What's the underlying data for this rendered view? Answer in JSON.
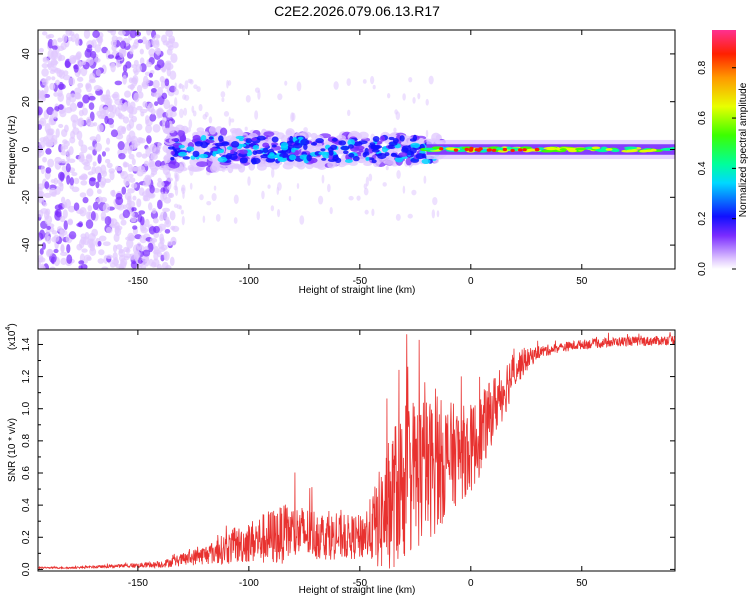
{
  "title": "C2E2.2026.079.06.13.R17",
  "chart_data": [
    {
      "type": "heatmap",
      "xlabel": "Height of straight line (km)",
      "ylabel": "Frequency (Hz)",
      "xlim": [
        -195,
        92
      ],
      "ylim": [
        -50,
        50
      ],
      "xticks": [
        "-150",
        "-100",
        "-50",
        "0",
        "50"
      ],
      "yticks": [
        "-40",
        "-20",
        "0",
        "20",
        "40"
      ],
      "colorbar": {
        "label": "Normalized spectral amplitude",
        "range": [
          0,
          0.95
        ],
        "ticks": [
          "0.0",
          "0.2",
          "0.4",
          "0.6",
          "0.8"
        ]
      },
      "regions": [
        {
          "x_range": [
            -195,
            -135
          ],
          "freq_range": [
            -50,
            50
          ],
          "amplitude": "low-noise"
        },
        {
          "x_range": [
            -135,
            -20
          ],
          "freq_range": [
            -10,
            10
          ],
          "amplitude": "medium"
        },
        {
          "x_range": [
            -20,
            92
          ],
          "freq_range": [
            -3,
            3
          ],
          "amplitude": "high"
        }
      ]
    },
    {
      "type": "line",
      "xlabel": "Height of straight line (km)",
      "ylabel": "SNR (10 * v/v)",
      "yscale_label": "(x10",
      "yscale_exp": "4",
      "xlim": [
        -195,
        92
      ],
      "ylim": [
        -0.01,
        1.49
      ],
      "xticks": [
        "-150",
        "-100",
        "-50",
        "0",
        "50"
      ],
      "yticks": [
        "0.0",
        "0.2",
        "0.4",
        "0.6",
        "0.8",
        "1.0",
        "1.2",
        "1.4"
      ],
      "series": [
        {
          "name": "SNR",
          "color": "#e8312f",
          "x": [
            -195,
            -180,
            -160,
            -140,
            -130,
            -120,
            -110,
            -100,
            -90,
            -80,
            -70,
            -60,
            -50,
            -45,
            -40,
            -35,
            -30,
            -25,
            -20,
            -15,
            -10,
            -5,
            0,
            5,
            10,
            15,
            20,
            25,
            30,
            40,
            50,
            60,
            70,
            80,
            92
          ],
          "y": [
            0.01,
            0.01,
            0.02,
            0.03,
            0.06,
            0.09,
            0.13,
            0.17,
            0.2,
            0.23,
            0.22,
            0.2,
            0.2,
            0.25,
            0.32,
            0.45,
            0.55,
            0.6,
            0.62,
            0.65,
            0.7,
            0.72,
            0.75,
            0.85,
            1.0,
            1.12,
            1.25,
            1.3,
            1.35,
            1.38,
            1.4,
            1.41,
            1.42,
            1.42,
            1.43
          ],
          "noise": [
            0.005,
            0.005,
            0.01,
            0.02,
            0.04,
            0.06,
            0.1,
            0.13,
            0.18,
            0.18,
            0.16,
            0.14,
            0.14,
            0.2,
            0.35,
            0.45,
            0.5,
            0.5,
            0.45,
            0.42,
            0.35,
            0.3,
            0.28,
            0.25,
            0.2,
            0.18,
            0.12,
            0.07,
            0.04,
            0.03,
            0.03,
            0.03,
            0.03,
            0.03,
            0.03
          ]
        }
      ]
    }
  ]
}
